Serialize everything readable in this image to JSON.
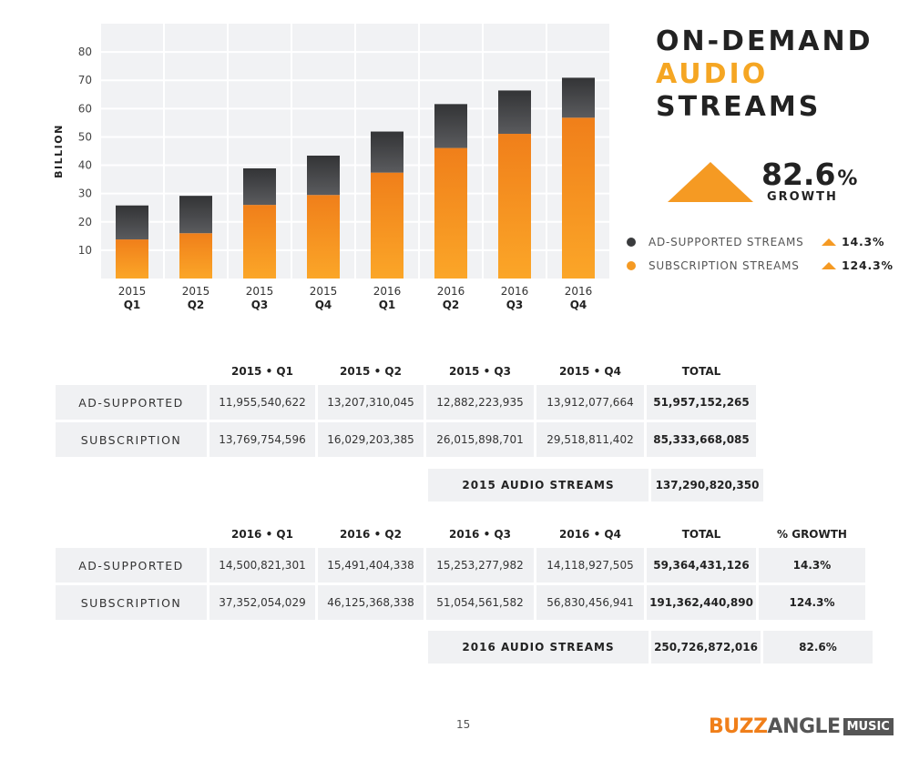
{
  "chart_data": {
    "type": "bar",
    "stacked": true,
    "categories": [
      [
        "2015",
        "Q1"
      ],
      [
        "2015",
        "Q2"
      ],
      [
        "2015",
        "Q3"
      ],
      [
        "2015",
        "Q4"
      ],
      [
        "2016",
        "Q1"
      ],
      [
        "2016",
        "Q2"
      ],
      [
        "2016",
        "Q3"
      ],
      [
        "2016",
        "Q4"
      ]
    ],
    "series": [
      {
        "name": "SUBSCRIPTION STREAMS",
        "color": "#f59a23",
        "values": [
          13.8,
          16.0,
          26.0,
          29.5,
          37.4,
          46.1,
          51.1,
          56.8
        ]
      },
      {
        "name": "AD-SUPPORTED STREAMS",
        "color": "#3a3b3d",
        "values": [
          12.0,
          13.2,
          12.9,
          13.9,
          14.5,
          15.5,
          15.3,
          14.1
        ]
      }
    ],
    "ylabel": "BILLION",
    "ylim": [
      0,
      90
    ],
    "yticks": [
      10,
      20,
      30,
      40,
      50,
      60,
      70,
      80
    ],
    "grid": true
  },
  "title": {
    "line1": "ON-DEMAND",
    "line2": "AUDIO",
    "line3": "STREAMS"
  },
  "growth": {
    "value": "82.6",
    "pct": "%",
    "label": "GROWTH"
  },
  "legend": [
    {
      "label": "AD-SUPPORTED STREAMS",
      "color": "#3a3b3d",
      "change": "14.3%"
    },
    {
      "label": "SUBSCRIPTION STREAMS",
      "color": "#f59a23",
      "change": "124.3%"
    }
  ],
  "table2015": {
    "headers": [
      "2015 • Q1",
      "2015 • Q2",
      "2015 • Q3",
      "2015 • Q4",
      "TOTAL"
    ],
    "rows": [
      {
        "label": "AD-SUPPORTED",
        "cells": [
          "11,955,540,622",
          "13,207,310,045",
          "12,882,223,935",
          "13,912,077,664",
          "51,957,152,265"
        ]
      },
      {
        "label": "SUBSCRIPTION",
        "cells": [
          "13,769,754,596",
          "16,029,203,385",
          "26,015,898,701",
          "29,518,811,402",
          "85,333,668,085"
        ]
      }
    ],
    "summary": {
      "label": "2015 AUDIO STREAMS",
      "total": "137,290,820,350"
    }
  },
  "table2016": {
    "headers": [
      "2016 • Q1",
      "2016 • Q2",
      "2016 • Q3",
      "2016 • Q4",
      "TOTAL",
      "% GROWTH"
    ],
    "rows": [
      {
        "label": "AD-SUPPORTED",
        "cells": [
          "14,500,821,301",
          "15,491,404,338",
          "15,253,277,982",
          "14,118,927,505",
          "59,364,431,126",
          "14.3%"
        ]
      },
      {
        "label": "SUBSCRIPTION",
        "cells": [
          "37,352,054,029",
          "46,125,368,338",
          "51,054,561,582",
          "56,830,456,941",
          "191,362,440,890",
          "124.3%"
        ]
      }
    ],
    "summary": {
      "label": "2016 AUDIO STREAMS",
      "total": "250,726,872,016",
      "growth": "82.6%"
    }
  },
  "page_number": "15",
  "logo": {
    "part1": "BUZZ",
    "part2": "ANGLE",
    "part3": "MUSIC"
  }
}
